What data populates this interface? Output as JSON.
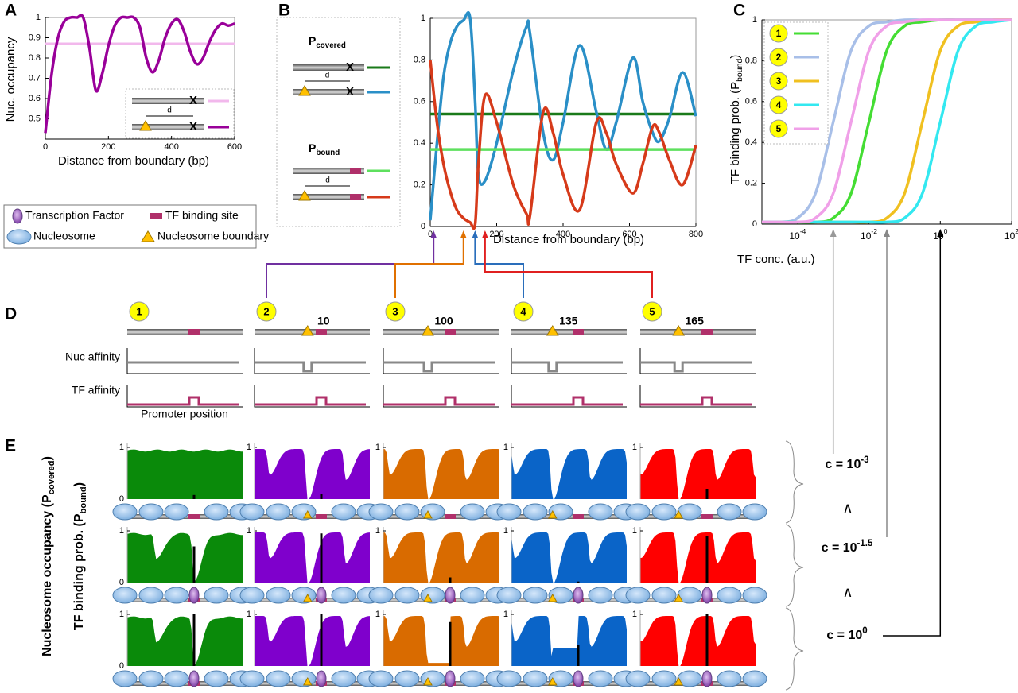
{
  "panel_labels": [
    "A",
    "B",
    "C",
    "D",
    "E"
  ],
  "icon_labels": {
    "d": "d",
    "x": "X"
  },
  "chart_data": [
    {
      "type": "line",
      "xlabel": "Distance from boundary (bp)",
      "ylabel": "Nuc. occupancy",
      "x": [
        0,
        20,
        40,
        60,
        80,
        100,
        120,
        140,
        160,
        180,
        200,
        220,
        240,
        260,
        280,
        300,
        320,
        340,
        360,
        380,
        400,
        420,
        440,
        460,
        480,
        500,
        520,
        540,
        560,
        580,
        600
      ],
      "xlim": [
        0,
        600
      ],
      "xticks": [
        0,
        200,
        400,
        600
      ],
      "ylim": [
        0.4,
        1
      ],
      "yticks": [
        0.5,
        0.6,
        0.7,
        0.8,
        0.9,
        1
      ],
      "series": [
        {
          "color": "#f2b8ec",
          "values": [
            0.87,
            0.87,
            0.87,
            0.87,
            0.87,
            0.87,
            0.87,
            0.87,
            0.87,
            0.87,
            0.87,
            0.87,
            0.87,
            0.87,
            0.87,
            0.87,
            0.87,
            0.87,
            0.87,
            0.87,
            0.87,
            0.87,
            0.87,
            0.87,
            0.87,
            0.87,
            0.87,
            0.87,
            0.87,
            0.87,
            0.87
          ]
        },
        {
          "color": "#990099",
          "values": [
            0.43,
            0.72,
            0.9,
            0.98,
            1,
            1,
            1,
            0.85,
            0.64,
            0.72,
            0.86,
            0.96,
            1,
            1,
            1,
            0.95,
            0.8,
            0.73,
            0.79,
            0.9,
            0.97,
            0.99,
            0.93,
            0.83,
            0.77,
            0.8,
            0.88,
            0.94,
            0.97,
            0.96,
            0.97
          ]
        }
      ]
    },
    {
      "type": "line",
      "xlabel": "Distance from boundary (bp)",
      "legend_groups": [
        {
          "label": "P",
          "sub": "covered"
        },
        {
          "label": "P",
          "sub": "bound"
        }
      ],
      "x": [
        0,
        20,
        40,
        60,
        80,
        100,
        120,
        135,
        145,
        165,
        200,
        250,
        290,
        300,
        340,
        370,
        400,
        450,
        500,
        530,
        560,
        610,
        640,
        670,
        690,
        720,
        760,
        800
      ],
      "xlim": [
        0,
        800
      ],
      "xticks": [
        0,
        200,
        400,
        600,
        800
      ],
      "ylim": [
        0,
        1
      ],
      "yticks": [
        0,
        0.2,
        0.4,
        0.6,
        0.8,
        1
      ],
      "series": [
        {
          "color": "#1a7a1a",
          "values": [
            0.54,
            0.54,
            0.54,
            0.54,
            0.54,
            0.54,
            0.54,
            0.54,
            0.54,
            0.54,
            0.54,
            0.54,
            0.54,
            0.54,
            0.54,
            0.54,
            0.54,
            0.54,
            0.54,
            0.54,
            0.54,
            0.54,
            0.54,
            0.54,
            0.54,
            0.54,
            0.54,
            0.54
          ]
        },
        {
          "color": "#2a8fc7",
          "values": [
            0.03,
            0.4,
            0.72,
            0.88,
            0.96,
            0.99,
            1,
            0.6,
            0.25,
            0.22,
            0.4,
            0.75,
            0.96,
            0.93,
            0.45,
            0.32,
            0.5,
            0.87,
            0.55,
            0.37,
            0.5,
            0.81,
            0.6,
            0.45,
            0.41,
            0.52,
            0.74,
            0.53
          ]
        },
        {
          "color": "#5ee05e",
          "values": [
            0.37,
            0.37,
            0.37,
            0.37,
            0.37,
            0.37,
            0.37,
            0.37,
            0.37,
            0.37,
            0.37,
            0.37,
            0.37,
            0.37,
            0.37,
            0.37,
            0.37,
            0.37,
            0.37,
            0.37,
            0.37,
            0.37,
            0.37,
            0.37,
            0.37,
            0.37,
            0.37,
            0.37
          ]
        },
        {
          "color": "#d63a1a",
          "values": [
            0.8,
            0.5,
            0.3,
            0.17,
            0.08,
            0.04,
            0.02,
            0.01,
            0.3,
            0.63,
            0.5,
            0.2,
            0.06,
            0.05,
            0.55,
            0.45,
            0.25,
            0.08,
            0.5,
            0.45,
            0.3,
            0.16,
            0.3,
            0.48,
            0.45,
            0.32,
            0.2,
            0.39
          ]
        }
      ]
    },
    {
      "type": "line",
      "log_x": true,
      "xlabel": "TF conc. (a.u.)",
      "ylabel": {
        "text": "TF binding prob. (P",
        "sub": "bound",
        "end": ")"
      },
      "x": [
        1e-05,
        3.16e-05,
        0.0001,
        0.000316,
        0.001,
        0.00316,
        0.01,
        0.0316,
        0.1,
        0.316,
        1,
        3.16,
        10,
        31.6,
        100
      ],
      "xlim": [
        1e-05,
        100
      ],
      "xticks": [
        {
          "value": 0.0001,
          "label": "10",
          "exp": "-4"
        },
        {
          "value": 0.01,
          "label": "10",
          "exp": "-2"
        },
        {
          "value": 1,
          "label": "10",
          "exp": "0"
        },
        {
          "value": 100,
          "label": "10",
          "exp": "2"
        }
      ],
      "ylim": [
        0,
        1
      ],
      "yticks": [
        0,
        0.2,
        0.4,
        0.6,
        0.8,
        1
      ],
      "series": [
        {
          "name": "1",
          "color": "#44dd33",
          "values": [
            0.01,
            0.01,
            0.01,
            0.01,
            0.03,
            0.15,
            0.5,
            0.85,
            0.97,
            0.99,
            1,
            1,
            1,
            1,
            1
          ]
        },
        {
          "name": "2",
          "color": "#a8bfe8",
          "values": [
            0.01,
            0.01,
            0.03,
            0.15,
            0.5,
            0.85,
            0.97,
            0.99,
            1,
            1,
            1,
            1,
            1,
            1,
            1
          ]
        },
        {
          "name": "3",
          "color": "#f0c020",
          "values": [
            0.01,
            0.01,
            0.01,
            0.01,
            0.01,
            0.01,
            0.01,
            0.03,
            0.15,
            0.5,
            0.85,
            0.97,
            0.99,
            1,
            1
          ]
        },
        {
          "name": "4",
          "color": "#33e8f0",
          "values": [
            0.01,
            0.01,
            0.01,
            0.01,
            0.01,
            0.01,
            0.01,
            0.01,
            0.03,
            0.15,
            0.5,
            0.85,
            0.97,
            0.99,
            1
          ]
        },
        {
          "name": "5",
          "color": "#f0a0e8",
          "values": [
            0.01,
            0.01,
            0.01,
            0.03,
            0.15,
            0.5,
            0.85,
            0.97,
            0.99,
            1,
            1,
            1,
            1,
            1,
            1
          ]
        }
      ]
    }
  ],
  "legend": [
    {
      "label": "Transcription Factor"
    },
    {
      "label": "TF binding site"
    },
    {
      "label": "Nucleosome"
    },
    {
      "label": "Nucleosome boundary"
    }
  ],
  "panel_d": {
    "nuc_label": "Nuc affinity",
    "tf_label": "TF affinity",
    "position_label": "Promoter position",
    "columns": [
      {
        "num": "1"
      },
      {
        "num": "2",
        "distance": 10,
        "color": "#7030a0"
      },
      {
        "num": "3",
        "distance": 100,
        "color": "#e07000"
      },
      {
        "num": "4",
        "distance": 135,
        "color": "#2a6ebb"
      },
      {
        "num": "5",
        "distance": 165,
        "color": "#e02020"
      }
    ]
  },
  "panel_e": {
    "ylabel_green": {
      "text": "Nucleosome occupancy (P",
      "sub": "covered",
      "end": ")"
    },
    "ylabel": {
      "text": "TF binding prob. (P",
      "sub": "bound",
      "end": ")"
    },
    "yticks": [
      0,
      1
    ],
    "colors": [
      "#0a8a0a",
      "#7f00cc",
      "#d96b00",
      "#0a64c8",
      "#ff0000"
    ],
    "p_bound": [
      [
        0.08,
        0.1,
        0,
        0,
        0.2
      ],
      [
        0.7,
        0.95,
        0.1,
        0.02,
        0.9
      ],
      [
        1,
        1,
        0.85,
        0.4,
        1
      ]
    ],
    "concentrations": [
      {
        "text": "c = 10",
        "exp": "-3",
        "color": "#999999"
      },
      {
        "text": "c = 10",
        "exp": "-1.5",
        "color": "#888888"
      },
      {
        "text": "c = 10",
        "exp": "0",
        "color": "#000000"
      }
    ],
    "gt": "∧"
  }
}
